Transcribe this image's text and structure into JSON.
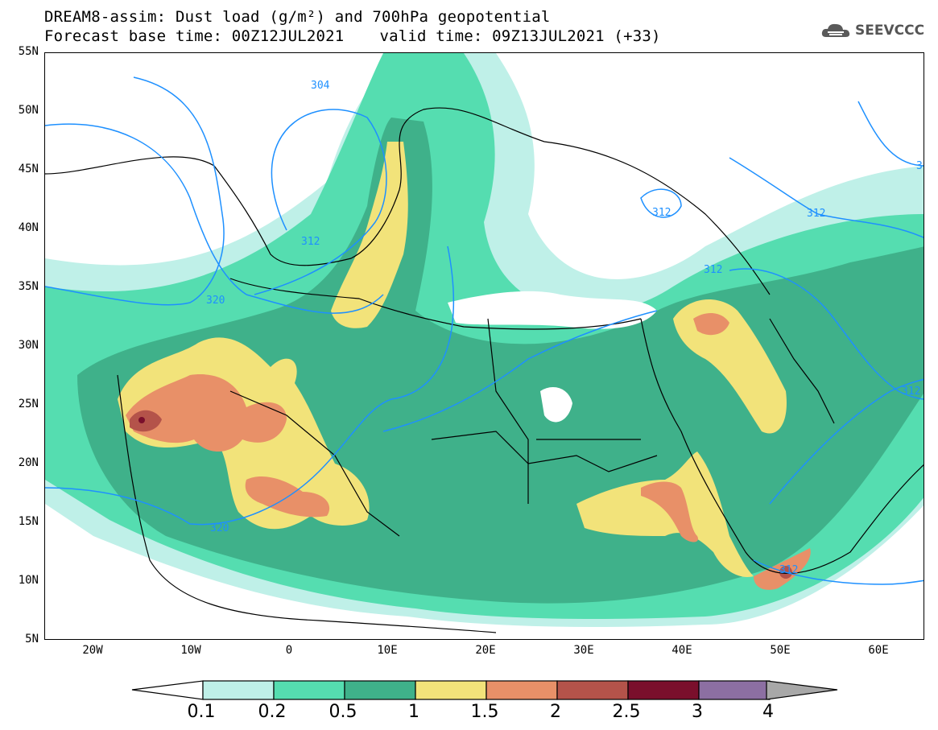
{
  "header": {
    "title_line1": "DREAM8-assim: Dust load (g/m²) and 700hPa geopotential",
    "base_time": "Forecast base time: 00Z12JUL2021",
    "valid_time": "valid time: 09Z13JUL2021 (+33)"
  },
  "logo": {
    "text": "SEEVCCC",
    "icon": "cloud-icon"
  },
  "map": {
    "lat_labels": [
      "55N",
      "50N",
      "45N",
      "40N",
      "35N",
      "30N",
      "25N",
      "20N",
      "15N",
      "10N",
      "5N"
    ],
    "lon_labels": [
      "20W",
      "10W",
      "0",
      "10E",
      "20E",
      "30E",
      "40E",
      "50E",
      "60E"
    ],
    "contour_labels": [
      "304",
      "312",
      "320",
      "312",
      "320",
      "312",
      "312",
      "312",
      "312",
      "3"
    ]
  },
  "colorbar": {
    "labels": [
      "0.1",
      "0.2",
      "0.5",
      "1",
      "1.5",
      "2",
      "2.5",
      "3",
      "4"
    ],
    "colors": [
      "#bff0e8",
      "#55ddb0",
      "#3fb18a",
      "#f2e37a",
      "#e89068",
      "#b4534a",
      "#7a0f2c",
      "#8c6fa2",
      "#a8a8a8"
    ],
    "under_color": "#ffffff",
    "over_color": "#a8a8a8"
  },
  "colors": {
    "dust_light": "#bff0e8",
    "dust_green": "#55ddb0",
    "dust_dark_green": "#3fb18a",
    "dust_yellow": "#f2e37a",
    "dust_orange": "#e89068",
    "dust_brown": "#b4534a",
    "dust_maroon": "#7a0f2c",
    "contour_line": "#1e90ff"
  }
}
